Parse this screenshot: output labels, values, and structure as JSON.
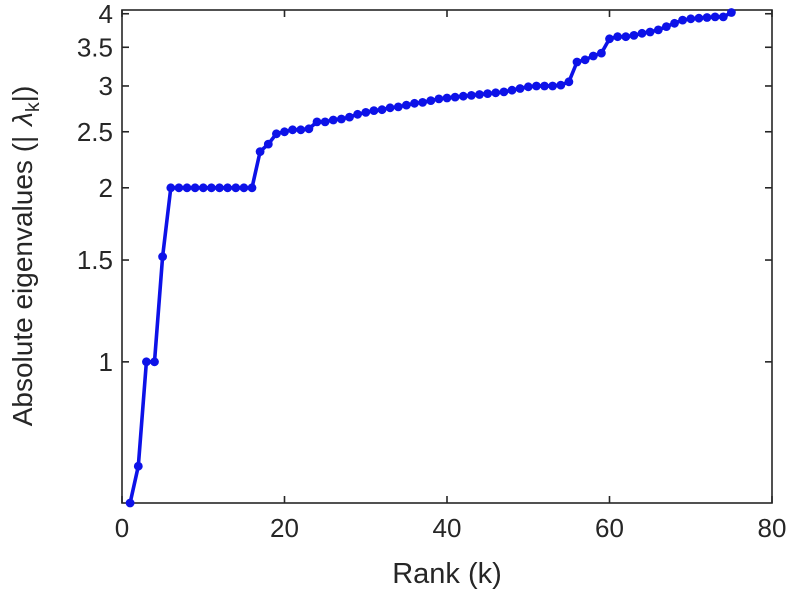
{
  "chart_data": {
    "type": "line",
    "title": "",
    "xlabel": "Rank (k)",
    "ylabel_prefix": "Absolute eigenvalues (|",
    "ylabel_symbol": "λ",
    "ylabel_subscript": "k",
    "ylabel_suffix": "|)",
    "yscale": "log",
    "grid": false,
    "legend": null,
    "xlim": [
      0,
      80
    ],
    "ylim": [
      0.57,
      4.06
    ],
    "xticks": [
      0,
      20,
      40,
      60,
      80
    ],
    "yticks": [
      1,
      1.5,
      2,
      2.5,
      3,
      3.5,
      4
    ],
    "line_color": "#0d12e8",
    "axis_color": "#262626",
    "marker": "filled-circle",
    "x": [
      1,
      2,
      3,
      4,
      5,
      6,
      7,
      8,
      9,
      10,
      11,
      12,
      13,
      14,
      15,
      16,
      17,
      18,
      19,
      20,
      21,
      22,
      23,
      24,
      25,
      26,
      27,
      28,
      29,
      30,
      31,
      32,
      33,
      34,
      35,
      36,
      37,
      38,
      39,
      40,
      41,
      42,
      43,
      44,
      45,
      46,
      47,
      48,
      49,
      50,
      51,
      52,
      53,
      54,
      55,
      56,
      57,
      58,
      59,
      60,
      61,
      62,
      63,
      64,
      65,
      66,
      67,
      68,
      69,
      70,
      71,
      72,
      73,
      74,
      75
    ],
    "y": [
      0.57,
      0.66,
      1.0,
      1.0,
      1.52,
      2.0,
      2.0,
      2.0,
      2.0,
      2.0,
      2.0,
      2.0,
      2.0,
      2.0,
      2.0,
      2.0,
      2.31,
      2.38,
      2.48,
      2.5,
      2.52,
      2.52,
      2.53,
      2.6,
      2.6,
      2.62,
      2.63,
      2.65,
      2.68,
      2.7,
      2.72,
      2.73,
      2.75,
      2.76,
      2.78,
      2.8,
      2.81,
      2.83,
      2.85,
      2.86,
      2.87,
      2.88,
      2.89,
      2.9,
      2.91,
      2.92,
      2.93,
      2.95,
      2.97,
      2.99,
      3.0,
      3.0,
      3.0,
      3.01,
      3.05,
      3.3,
      3.33,
      3.38,
      3.42,
      3.62,
      3.65,
      3.65,
      3.67,
      3.7,
      3.72,
      3.75,
      3.8,
      3.85,
      3.9,
      3.92,
      3.93,
      3.94,
      3.95,
      3.95,
      4.02
    ]
  }
}
